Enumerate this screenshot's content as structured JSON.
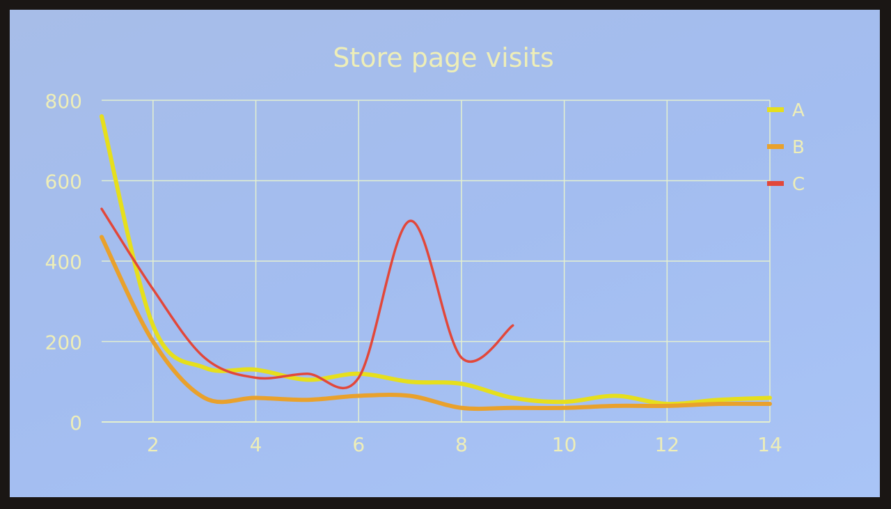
{
  "chart_data": {
    "type": "line",
    "title": "Store page visits",
    "xlabel": "",
    "ylabel": "",
    "xlim": [
      1,
      14
    ],
    "ylim": [
      0,
      800
    ],
    "x_ticks": [
      2,
      4,
      6,
      8,
      10,
      12,
      14
    ],
    "y_ticks": [
      0,
      200,
      400,
      600,
      800
    ],
    "grid": true,
    "legend_position": "right",
    "smooth": true,
    "series": [
      {
        "name": "A",
        "color": "#e6df1c",
        "x": [
          1,
          2,
          3,
          4,
          5,
          6,
          7,
          8,
          9,
          10,
          11,
          12,
          13,
          14
        ],
        "values": [
          760,
          240,
          135,
          130,
          105,
          120,
          100,
          95,
          60,
          50,
          65,
          45,
          55,
          60
        ]
      },
      {
        "name": "B",
        "color": "#e9a12c",
        "x": [
          1,
          2,
          3,
          4,
          5,
          6,
          7,
          8,
          9,
          10,
          11,
          12,
          13,
          14
        ],
        "values": [
          460,
          200,
          60,
          60,
          55,
          65,
          65,
          35,
          35,
          35,
          40,
          40,
          45,
          45
        ]
      },
      {
        "name": "C",
        "color": "#e2473a",
        "x": [
          1,
          2,
          3,
          4,
          5,
          6,
          7,
          8,
          9
        ],
        "values": [
          530,
          330,
          160,
          110,
          120,
          110,
          500,
          160,
          240
        ]
      }
    ]
  }
}
